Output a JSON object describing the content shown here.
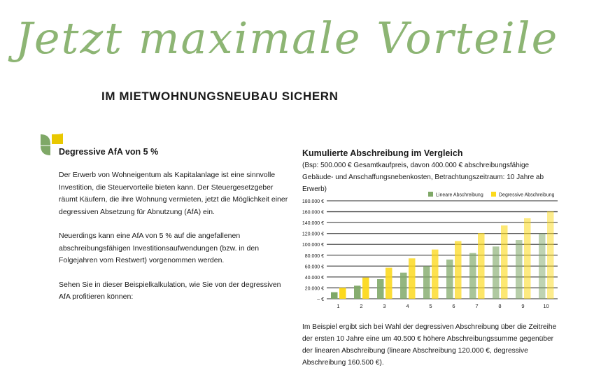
{
  "header": {
    "title_script": "Jetzt maximale Vorteile",
    "subtitle": "IM MIETWOHNUNGSNEUBAU SICHERN"
  },
  "left": {
    "icon": "leaf-logo-icon",
    "heading": "Degressive AfA von 5 %",
    "paragraphs": [
      "Der Erwerb von Wohneigentum als Kapitalanlage ist eine sinnvolle Investition, die Steuervorteile bieten kann. Der Steuergesetzgeber räumt Käufern, die ihre Wohnung vermieten, jetzt die Möglichkeit einer degressiven Absetzung für Abnutzung (AfA) ein.",
      "Neuerdings kann eine AfA von 5 % auf die angefallenen abschreibungsfähigen Investitionsaufwendungen (bzw. in den Folgejahren vom Restwert) vorgenommen werden.",
      "Sehen Sie in dieser Beispielkalkulation, wie Sie von der degressiven AfA profitieren können:"
    ]
  },
  "right": {
    "heading": "Kumulierte Abschreibung im Vergleich",
    "note": "(Bsp: 500.000 € Gesamtkaufpreis, davon 400.000 € abschreibungsfähige Gebäude- und Anschaffungsnebenkosten, Betrachtungszeitraum: 10 Jahre ab Erwerb)",
    "conclusion": "Im Beispiel ergibt sich bei Wahl der degressiven Abschreibung über die Zeitreihe der ersten 10 Jahre eine um 40.500 € höhere Abschreibungssumme gegenüber der linearen Abschreibung (lineare Abschreibung 120.000 €, degressive Abschreibung 160.500 €)."
  },
  "chart_data": {
    "type": "bar",
    "title": "Kumulierte Abschreibung im Vergleich",
    "categories": [
      "1",
      "2",
      "3",
      "4",
      "5",
      "6",
      "7",
      "8",
      "9",
      "10"
    ],
    "series": [
      {
        "name": "Lineare Abschreibung",
        "color": "#7fa867",
        "values": [
          12000,
          24000,
          36000,
          48000,
          60000,
          72000,
          84000,
          96000,
          108000,
          120000
        ]
      },
      {
        "name": "Degressive Abschreibung",
        "color": "#fcd91c",
        "values": [
          20000,
          39000,
          57050,
          74198,
          90488,
          105963,
          120665,
          134632,
          147900,
          160505
        ]
      }
    ],
    "ylim": [
      0,
      180000
    ],
    "yticks": [
      0,
      20000,
      40000,
      60000,
      80000,
      100000,
      120000,
      140000,
      160000,
      180000
    ],
    "ytick_labels": [
      "– €",
      "20.000 €",
      "40.000 €",
      "60.000 €",
      "80.000 €",
      "100.000 €",
      "120.000 €",
      "140.000 €",
      "160.000 €",
      "180.000 €"
    ],
    "grid": true,
    "legend": "top-right",
    "xlabel": "",
    "ylabel": ""
  }
}
